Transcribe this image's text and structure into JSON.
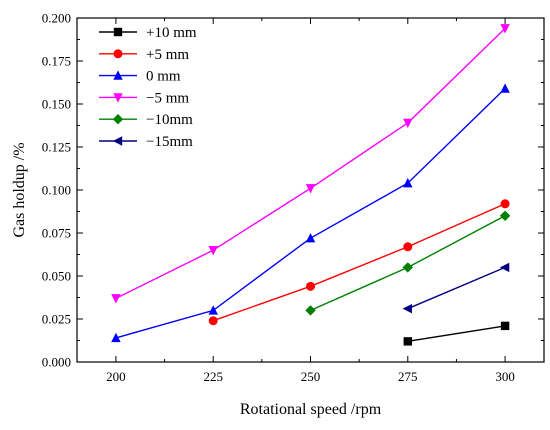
{
  "chart_data": {
    "type": "line",
    "title": "",
    "xlabel": "Rotational speed /rpm",
    "ylabel": "Gas holdup /%",
    "xlim": [
      190,
      310
    ],
    "ylim": [
      0,
      0.2
    ],
    "xticks": [
      "200",
      "225",
      "250",
      "275",
      "300"
    ],
    "yticks": [
      "0.000",
      "0.025",
      "0.050",
      "0.075",
      "0.100",
      "0.125",
      "0.150",
      "0.175",
      "0.200"
    ],
    "legend_position": "top-left",
    "grid": false,
    "series": [
      {
        "name": "+10 mm",
        "color": "#000000",
        "marker": "square",
        "x": [
          275,
          300
        ],
        "y": [
          0.012,
          0.021
        ]
      },
      {
        "name": "+5 mm",
        "color": "#ff0000",
        "marker": "circle",
        "x": [
          225,
          250,
          275,
          300
        ],
        "y": [
          0.024,
          0.044,
          0.067,
          0.092
        ]
      },
      {
        "name": "0 mm",
        "color": "#0000ff",
        "marker": "triangle-up",
        "x": [
          200,
          225,
          250,
          275,
          300
        ],
        "y": [
          0.014,
          0.03,
          0.072,
          0.104,
          0.159
        ]
      },
      {
        "name": "−5 mm",
        "color": "#ff00ff",
        "marker": "triangle-down",
        "x": [
          200,
          225,
          250,
          275,
          300
        ],
        "y": [
          0.037,
          0.065,
          0.101,
          0.139,
          0.194
        ]
      },
      {
        "name": "−10mm",
        "color": "#008000",
        "marker": "diamond",
        "x": [
          250,
          275,
          300
        ],
        "y": [
          0.03,
          0.055,
          0.085
        ]
      },
      {
        "name": "−15mm",
        "color": "#000080",
        "marker": "triangle-left",
        "x": [
          275,
          300
        ],
        "y": [
          0.031,
          0.055
        ]
      }
    ]
  }
}
